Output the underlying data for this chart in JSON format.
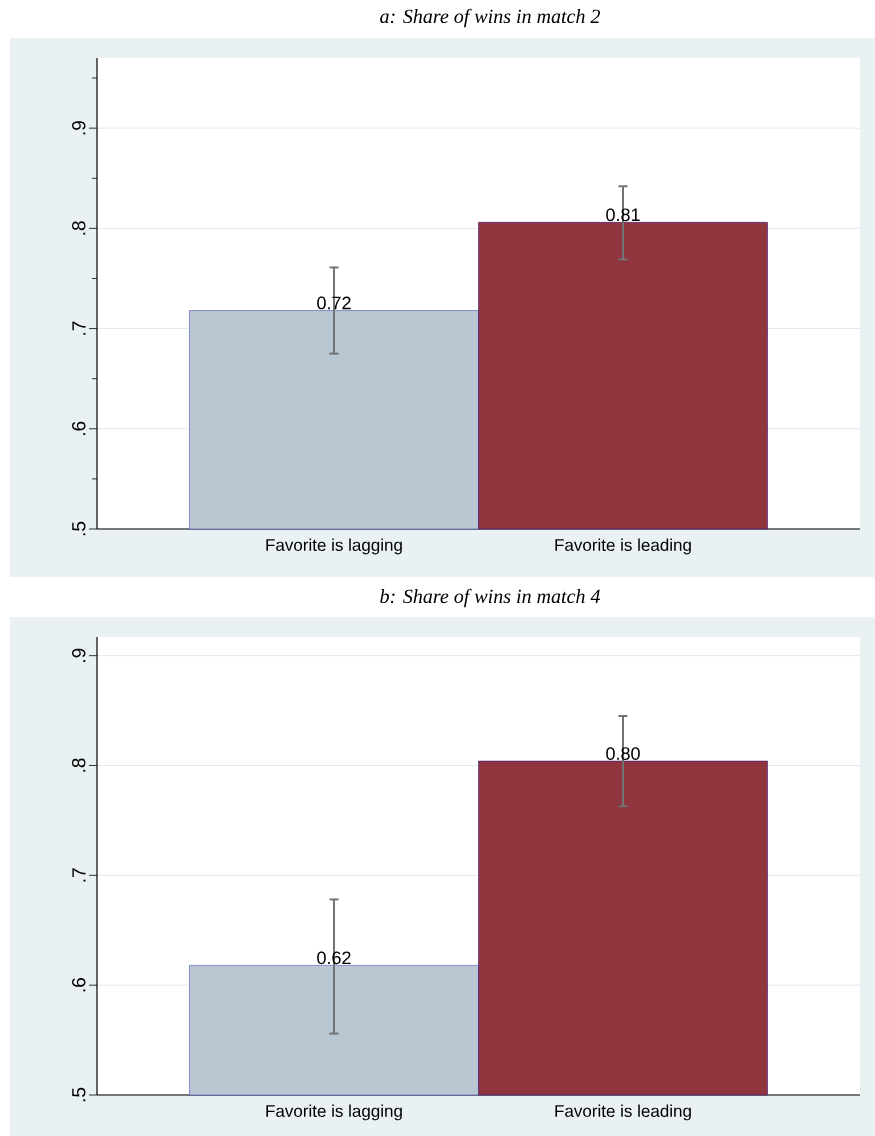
{
  "chart_data": [
    {
      "type": "bar",
      "title": "a: Share of wins in match 2",
      "categories": [
        "Favorite is lagging",
        "Favorite is leading"
      ],
      "values": [
        0.718,
        0.806
      ],
      "colors": [
        "#b9c7d2",
        "#8e353d"
      ],
      "errors": [
        [
          0.674,
          0.762
        ],
        [
          0.768,
          0.843
        ]
      ],
      "value_labels": [
        "0.72",
        "0.81"
      ],
      "ylim": [
        0.5,
        0.97
      ],
      "yticks": [
        {
          "value": 0.5,
          "label": ".5"
        },
        {
          "value": 0.55,
          "label": null
        },
        {
          "value": 0.6,
          "label": ".6"
        },
        {
          "value": 0.65,
          "label": null
        },
        {
          "value": 0.7,
          "label": ".7"
        },
        {
          "value": 0.75,
          "label": null
        },
        {
          "value": 0.8,
          "label": ".8"
        },
        {
          "value": 0.85,
          "label": null
        },
        {
          "value": 0.9,
          "label": ".9"
        },
        {
          "value": 0.95,
          "label": null
        }
      ],
      "grid": "y"
    },
    {
      "type": "bar",
      "title": "b: Share of wins in match 4",
      "categories": [
        "Favorite is lagging",
        "Favorite is leading"
      ],
      "values": [
        0.618,
        0.804
      ],
      "colors": [
        "#b9c7d2",
        "#8e353d"
      ],
      "errors": [
        [
          0.555,
          0.679
        ],
        [
          0.762,
          0.846
        ]
      ],
      "value_labels": [
        "0.62",
        "0.80"
      ],
      "ylim": [
        0.5,
        0.917
      ],
      "yticks": [
        {
          "value": 0.5,
          "label": ".5"
        },
        {
          "value": 0.6,
          "label": ".6"
        },
        {
          "value": 0.7,
          "label": ".7"
        },
        {
          "value": 0.8,
          "label": ".8"
        },
        {
          "value": 0.9,
          "label": ".9"
        }
      ],
      "grid": "y"
    }
  ]
}
